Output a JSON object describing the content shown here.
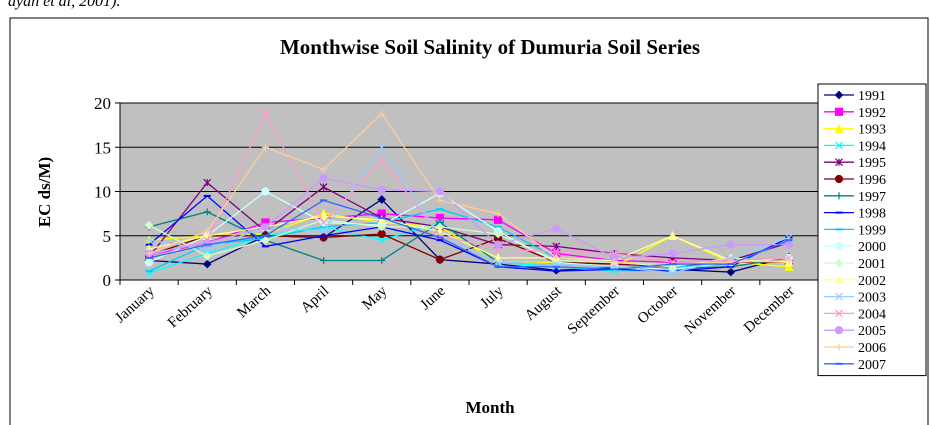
{
  "page_text": "ayan et al, 2001).",
  "chart_data": {
    "type": "line",
    "title": "Monthwise Soil Salinity of Dumuria Soil Series",
    "y_label": "EC ds/M)",
    "x_label": "Month",
    "categories": [
      "January",
      "February",
      "March",
      "April",
      "May",
      "June",
      "July",
      "August",
      "September",
      "October",
      "November",
      "December"
    ],
    "ylim": [
      0,
      20
    ],
    "yticks": [
      0,
      5,
      10,
      15,
      20
    ],
    "grid": true,
    "plot_background": "#c0c0c0",
    "legend": "right",
    "series": [
      {
        "name": "1991",
        "color": "#000080",
        "marker": "diamond",
        "values": [
          2.2,
          1.8,
          5.0,
          4.8,
          9.1,
          2.3,
          1.8,
          1.1,
          1.4,
          1.2,
          0.9,
          2.6
        ]
      },
      {
        "name": "1992",
        "color": "#ff00ff",
        "marker": "square",
        "values": [
          2.8,
          4.2,
          6.5,
          7.0,
          7.5,
          7.0,
          6.8,
          3.0,
          2.2,
          2.0,
          2.2,
          2.0
        ]
      },
      {
        "name": "1993",
        "color": "#ffff00",
        "marker": "triangle",
        "values": [
          4.5,
          5.0,
          5.2,
          7.5,
          6.5,
          6.0,
          2.0,
          2.0,
          1.5,
          5.0,
          2.0,
          1.5
        ]
      },
      {
        "name": "1994",
        "color": "#00ffff",
        "marker": "x",
        "values": [
          0.8,
          3.0,
          5.0,
          6.0,
          4.5,
          6.5,
          2.0,
          1.5,
          1.0,
          1.0,
          2.0,
          4.5
        ]
      },
      {
        "name": "1995",
        "color": "#800080",
        "marker": "star",
        "values": [
          2.6,
          11.0,
          5.5,
          10.5,
          7.0,
          6.0,
          4.0,
          3.8,
          3.0,
          2.5,
          2.2,
          4.2
        ]
      },
      {
        "name": "1996",
        "color": "#800000",
        "marker": "circle",
        "values": [
          2.8,
          5.0,
          5.0,
          4.8,
          5.2,
          2.3,
          4.7,
          2.0,
          1.8,
          1.5,
          2.0,
          2.0
        ]
      },
      {
        "name": "1997",
        "color": "#008080",
        "marker": "plus",
        "values": [
          6.0,
          7.7,
          4.5,
          2.2,
          2.2,
          6.5,
          2.0,
          1.8,
          1.5,
          1.3,
          1.5,
          2.5
        ]
      },
      {
        "name": "1998",
        "color": "#0000ff",
        "marker": "dash",
        "values": [
          4.0,
          9.5,
          3.8,
          5.0,
          6.0,
          4.5,
          1.5,
          1.0,
          1.2,
          1.0,
          1.5,
          4.8
        ]
      },
      {
        "name": "1999",
        "color": "#00ccff",
        "marker": "dash",
        "values": [
          1.0,
          4.0,
          4.7,
          6.0,
          6.5,
          8.0,
          6.0,
          2.5,
          2.0,
          1.5,
          1.8,
          4.5
        ]
      },
      {
        "name": "2000",
        "color": "#ccffff",
        "marker": "circle",
        "values": [
          2.0,
          5.0,
          10.0,
          6.5,
          6.2,
          9.8,
          5.5,
          2.0,
          1.5,
          1.2,
          2.0,
          2.5
        ]
      },
      {
        "name": "2001",
        "color": "#ccffcc",
        "marker": "diamond",
        "values": [
          6.2,
          2.7,
          4.5,
          6.8,
          6.0,
          6.0,
          5.2,
          2.2,
          2.0,
          1.5,
          2.5,
          2.0
        ]
      },
      {
        "name": "2002",
        "color": "#ffff99",
        "marker": "triangle",
        "values": [
          3.5,
          5.0,
          6.0,
          7.2,
          6.8,
          5.5,
          2.5,
          2.5,
          2.2,
          5.0,
          2.2,
          2.0
        ]
      },
      {
        "name": "2003",
        "color": "#99ccff",
        "marker": "x",
        "values": [
          4.5,
          3.5,
          6.0,
          5.5,
          15.0,
          5.0,
          2.0,
          1.8,
          1.5,
          0.8,
          2.5,
          4.8
        ]
      },
      {
        "name": "2004",
        "color": "#ff99cc",
        "marker": "x",
        "values": [
          2.8,
          4.5,
          18.8,
          6.5,
          13.5,
          5.0,
          3.5,
          3.2,
          3.0,
          2.0,
          2.2,
          2.5
        ]
      },
      {
        "name": "2005",
        "color": "#cc99ff",
        "marker": "circle",
        "values": [
          3.0,
          4.2,
          6.0,
          11.5,
          10.2,
          10.0,
          4.0,
          5.8,
          2.5,
          3.0,
          4.0,
          4.0
        ]
      },
      {
        "name": "2006",
        "color": "#ffcc99",
        "marker": "plus",
        "values": [
          3.0,
          5.5,
          15.0,
          12.5,
          18.8,
          9.0,
          7.5,
          2.5,
          2.0,
          1.8,
          2.0,
          2.2
        ]
      },
      {
        "name": "2007",
        "color": "#3366ff",
        "marker": "dash",
        "values": [
          2.5,
          4.0,
          5.0,
          9.0,
          7.0,
          4.8,
          1.5,
          1.5,
          1.2,
          1.8,
          1.8,
          4.5
        ]
      }
    ]
  }
}
